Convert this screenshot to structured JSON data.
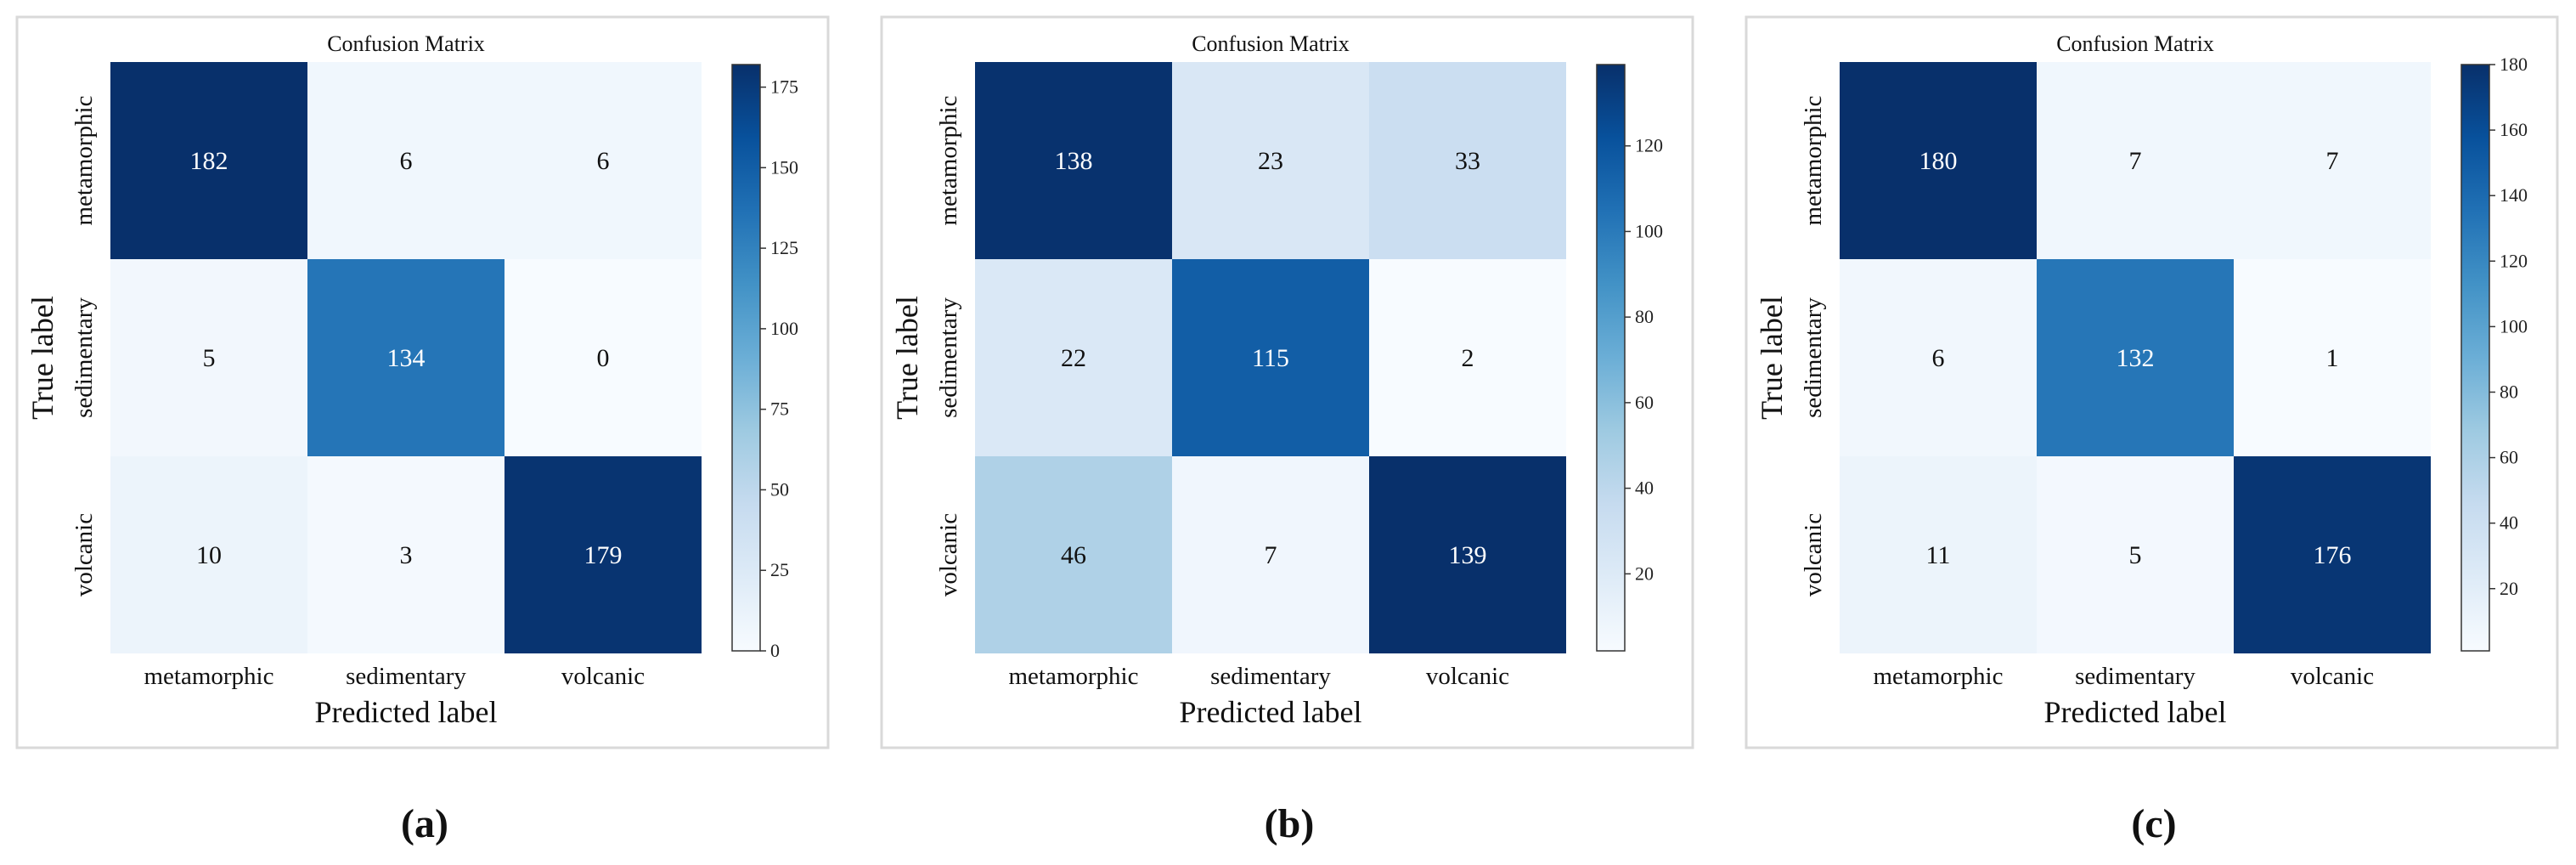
{
  "chart_data": [
    {
      "type": "heatmap",
      "title": "Confusion Matrix",
      "xlabel": "Predicted label",
      "ylabel": "True label",
      "x_categories": [
        "metamorphic",
        "sedimentary",
        "volcanic"
      ],
      "y_categories": [
        "metamorphic",
        "sedimentary",
        "volcanic"
      ],
      "matrix": [
        [
          182,
          6,
          6
        ],
        [
          5,
          134,
          0
        ],
        [
          10,
          3,
          179
        ]
      ],
      "colorbar": {
        "min": 0,
        "max": 182,
        "ticks": [
          0,
          25,
          50,
          75,
          100,
          125,
          150,
          175
        ]
      },
      "colormap": "Blues",
      "caption": "(a)"
    },
    {
      "type": "heatmap",
      "title": "Confusion Matrix",
      "xlabel": "Predicted label",
      "ylabel": "True label",
      "x_categories": [
        "metamorphic",
        "sedimentary",
        "volcanic"
      ],
      "y_categories": [
        "metamorphic",
        "sedimentary",
        "volcanic"
      ],
      "matrix": [
        [
          138,
          23,
          33
        ],
        [
          22,
          115,
          2
        ],
        [
          46,
          7,
          139
        ]
      ],
      "colorbar": {
        "min": 2,
        "max": 139,
        "ticks": [
          20,
          40,
          60,
          80,
          100,
          120
        ]
      },
      "colormap": "Blues",
      "caption": "(b)"
    },
    {
      "type": "heatmap",
      "title": "Confusion Matrix",
      "xlabel": "Predicted label",
      "ylabel": "True label",
      "x_categories": [
        "metamorphic",
        "sedimentary",
        "volcanic"
      ],
      "y_categories": [
        "metamorphic",
        "sedimentary",
        "volcanic"
      ],
      "matrix": [
        [
          180,
          7,
          7
        ],
        [
          6,
          132,
          1
        ],
        [
          11,
          5,
          176
        ]
      ],
      "colorbar": {
        "min": 1,
        "max": 180,
        "ticks": [
          20,
          40,
          60,
          80,
          100,
          120,
          140,
          160,
          180
        ]
      },
      "colormap": "Blues",
      "caption": "(c)"
    }
  ]
}
